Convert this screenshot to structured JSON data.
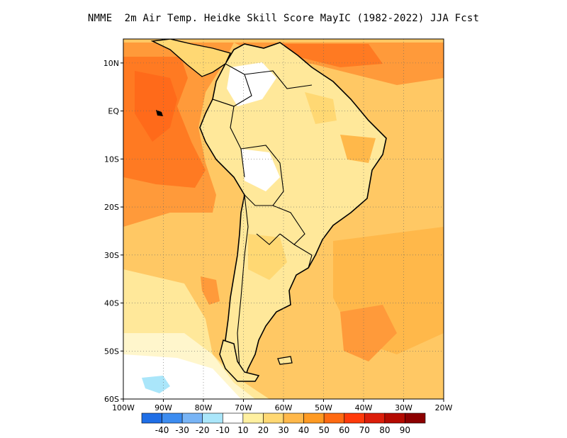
{
  "title": "NMME  2m Air Temp. Heidke Skill Score MayIC (1982-2022) JJA Fcst",
  "map": {
    "region": "South America",
    "lat_labels": [
      "10N",
      "EQ",
      "10S",
      "20S",
      "30S",
      "40S",
      "50S",
      "60S"
    ],
    "lon_labels": [
      "100W",
      "90W",
      "80W",
      "70W",
      "60W",
      "50W",
      "40W",
      "30W",
      "20W"
    ],
    "grid": "dotted"
  },
  "colorbar": {
    "labels": [
      "-40",
      "-30",
      "-20",
      "-10",
      "10",
      "20",
      "30",
      "40",
      "50",
      "60",
      "70",
      "80",
      "90"
    ],
    "colors": [
      "#1f6ee6",
      "#3c8cf0",
      "#78b4f5",
      "#aae6fa",
      "#ffffff",
      "#fff0a0",
      "#ffd873",
      "#ffb84a",
      "#ff9a22",
      "#ff6a12",
      "#ff3a0a",
      "#dc1e0a",
      "#b40a00",
      "#8c0000"
    ]
  },
  "palette": {
    "ocean_base": "#ffc864",
    "land_base": "#ffe89a",
    "hot": "#ff8c2a",
    "very_hot": "#ff6a1a",
    "coast": "#000000"
  }
}
